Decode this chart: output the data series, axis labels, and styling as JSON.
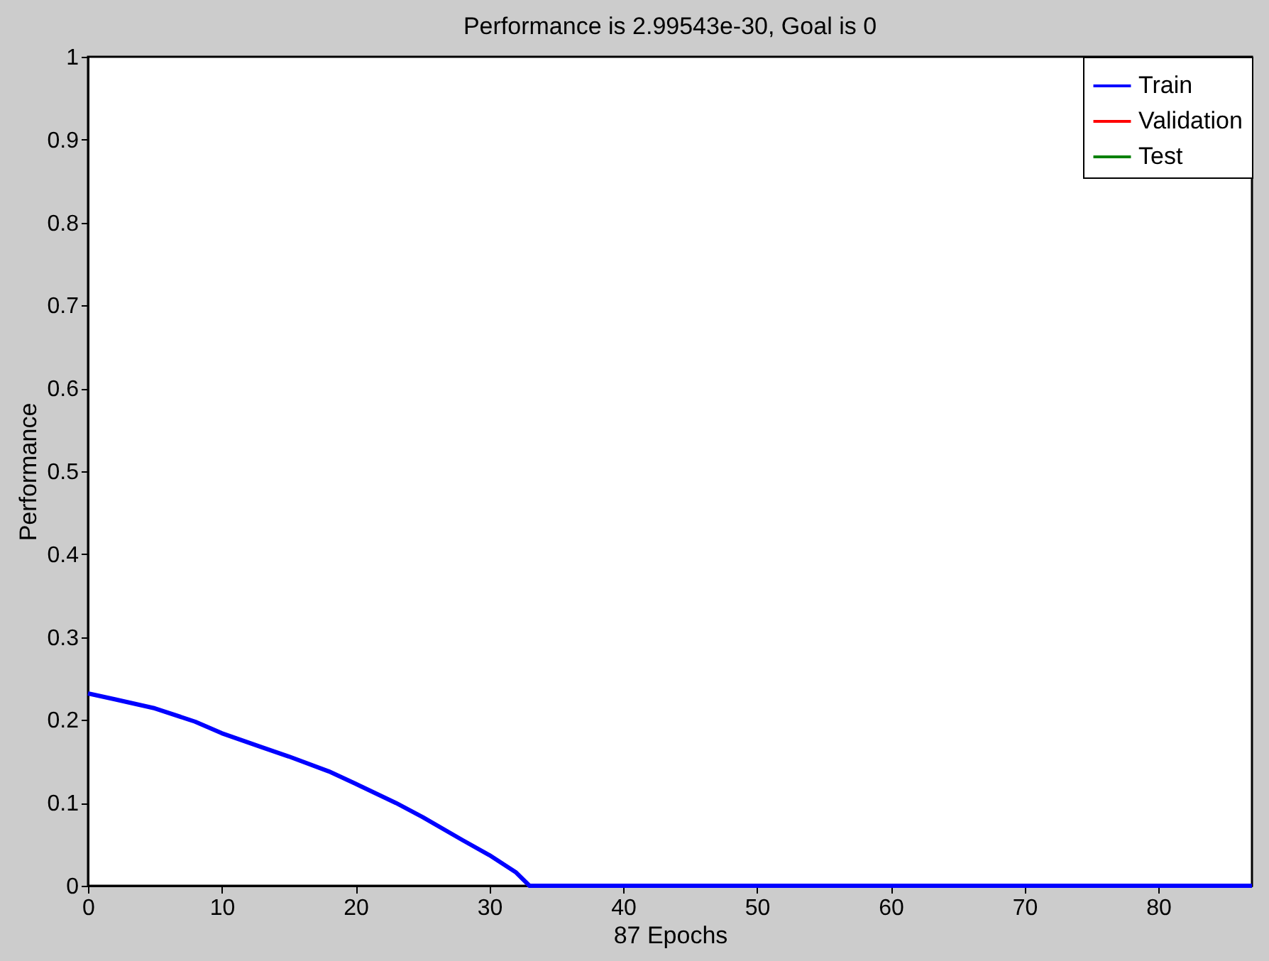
{
  "chart_data": {
    "type": "line",
    "title": "Performance is 2.99543e-30, Goal is 0",
    "xlabel": "87 Epochs",
    "ylabel": "Performance",
    "x": [
      0,
      2,
      5,
      8,
      10,
      13,
      15,
      18,
      20,
      23,
      25,
      28,
      30,
      32,
      33,
      40,
      50,
      60,
      70,
      80,
      87
    ],
    "series": [
      {
        "name": "Train",
        "color": "#0000ff",
        "values": [
          0.232,
          0.225,
          0.214,
          0.198,
          0.184,
          0.167,
          0.156,
          0.138,
          0.123,
          0.1,
          0.083,
          0.055,
          0.037,
          0.016,
          0,
          0,
          0,
          0,
          0,
          0,
          0
        ]
      },
      {
        "name": "Validation",
        "color": "#ff0000",
        "values": [
          null,
          null,
          null,
          null,
          null,
          null,
          null,
          null,
          null,
          null,
          null,
          null,
          null,
          null,
          null,
          null,
          null,
          null,
          null,
          null,
          null
        ]
      },
      {
        "name": "Test",
        "color": "#008000",
        "values": [
          null,
          null,
          null,
          null,
          null,
          null,
          null,
          null,
          null,
          null,
          null,
          null,
          null,
          null,
          null,
          null,
          null,
          null,
          null,
          null,
          null
        ]
      }
    ],
    "xlim": [
      0,
      87
    ],
    "xticks": [
      0,
      10,
      20,
      30,
      40,
      50,
      60,
      70,
      80
    ],
    "ylim": [
      0,
      1
    ],
    "yticks": [
      0,
      0.1,
      0.2,
      0.3,
      0.4,
      0.5,
      0.6,
      0.7,
      0.8,
      0.9,
      1
    ],
    "grid": false,
    "legend": "top right",
    "line_style": "solid",
    "marker": "none"
  }
}
